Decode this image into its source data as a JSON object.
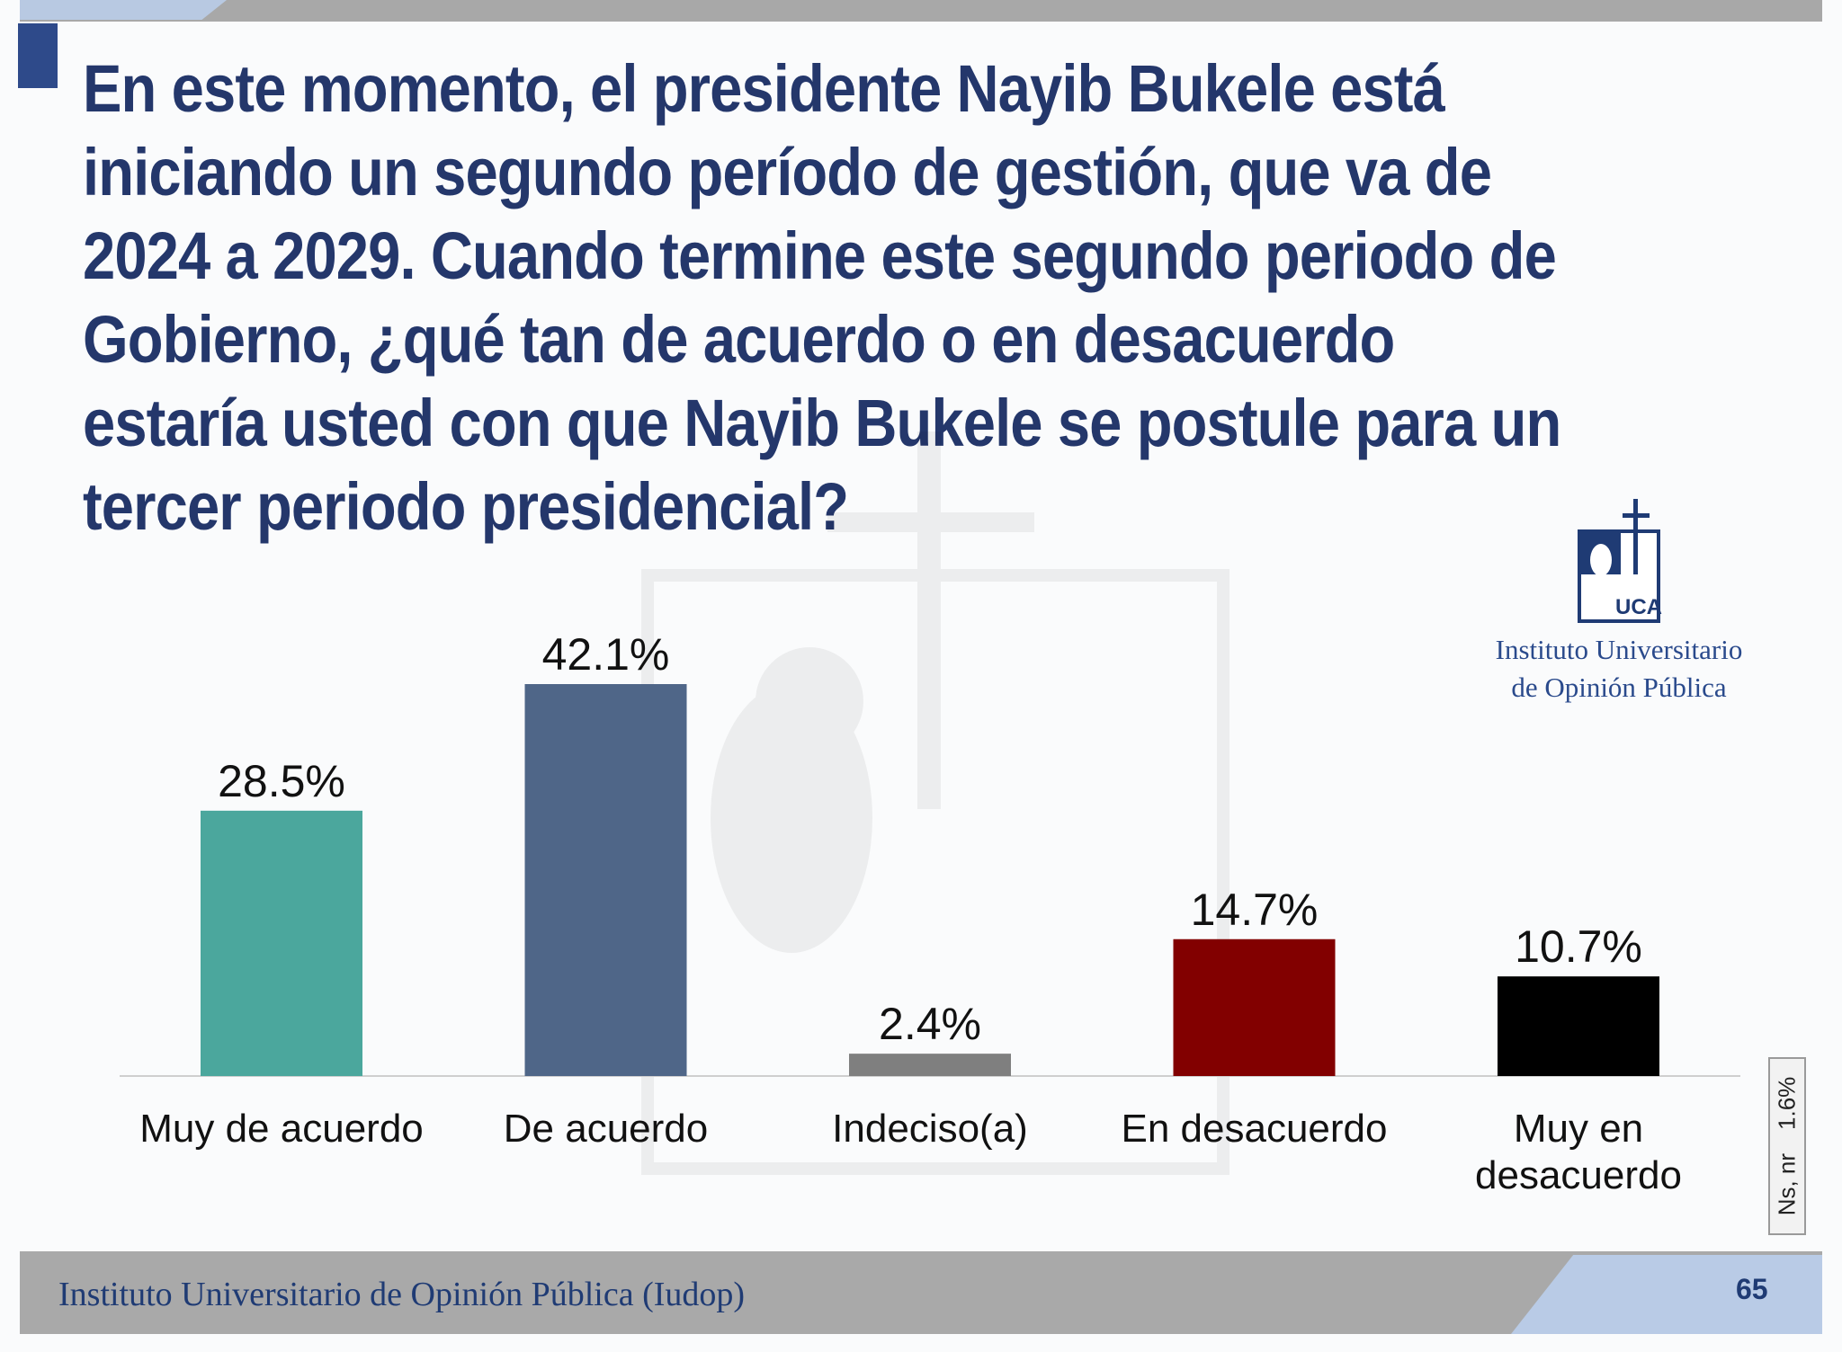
{
  "question": "En este momento, el presidente Nayib Bukele está iniciando un segundo período de gestión, que va de 2024 a 2029. Cuando termine este segundo periodo de Gobierno, ¿qué tan de acuerdo o en desacuerdo estaría usted con que Nayib Bukele se postule para un tercer periodo presidencial?",
  "logo": {
    "mark_text": "UCA",
    "name_line1": "Instituto Universitario",
    "name_line2": "de Opinión Pública"
  },
  "chart_data": {
    "type": "bar",
    "title": "",
    "xlabel": "",
    "ylabel": "",
    "ylim": [
      0,
      50
    ],
    "grid": false,
    "categories": [
      "Muy de acuerdo",
      "De acuerdo",
      "Indeciso(a)",
      "En desacuerdo",
      "Muy en desacuerdo"
    ],
    "category_lines": [
      [
        "Muy de acuerdo"
      ],
      [
        "De acuerdo"
      ],
      [
        "Indeciso(a)"
      ],
      [
        "En desacuerdo"
      ],
      [
        "Muy en",
        "desacuerdo"
      ]
    ],
    "values": [
      28.5,
      42.1,
      2.4,
      14.7,
      10.7
    ],
    "value_labels": [
      "28.5%",
      "42.1%",
      "2.4%",
      "14.7%",
      "10.7%"
    ],
    "colors": [
      "#4ba79d",
      "#4f6688",
      "#7f7f7f",
      "#820000",
      "#000000"
    ],
    "note": {
      "label": "Ns, nr",
      "value": "1.6%"
    }
  },
  "footer": {
    "institution": "Instituto Universitario de Opinión Pública (Iudop)",
    "page_number": "65"
  }
}
